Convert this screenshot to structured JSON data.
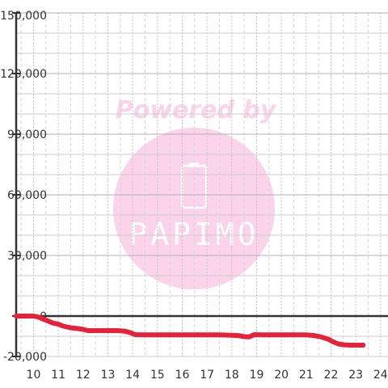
{
  "chart_data": {
    "type": "line",
    "title": "",
    "xlabel": "",
    "ylabel": "",
    "xlim": [
      9.3,
      24.3
    ],
    "ylim": [
      -20000,
      150000
    ],
    "x_ticks": [
      10,
      11,
      12,
      13,
      14,
      15,
      16,
      17,
      18,
      19,
      20,
      21,
      22,
      23,
      24
    ],
    "x_tick_labels": [
      "10",
      "11",
      "12",
      "13",
      "14",
      "15",
      "16",
      "17",
      "18",
      "19",
      "20",
      "21",
      "22",
      "23",
      "24"
    ],
    "y_ticks": [
      150000,
      120000,
      90000,
      60000,
      30000,
      0,
      -20000
    ],
    "y_tick_labels": [
      "150,000",
      "120,000",
      "90,000",
      "60,000",
      "30,000",
      "0",
      "-20,000"
    ],
    "grid": true,
    "series": [
      {
        "x": [
          9.3,
          9.7,
          10.0,
          10.2,
          10.4,
          10.6,
          10.8,
          11.0,
          11.2,
          11.5,
          11.8,
          12.0,
          12.2,
          12.6,
          13.0,
          13.4,
          13.7,
          13.9,
          14.1,
          14.4,
          15.0,
          16.0,
          17.0,
          17.5,
          18.0,
          18.3,
          18.5,
          18.7,
          18.9,
          19.2,
          19.5,
          20.0,
          20.5,
          21.0,
          21.3,
          21.6,
          21.9,
          22.1,
          22.3,
          22.5,
          22.8,
          23.1,
          23.3
        ],
        "y": [
          0,
          0,
          0,
          -500,
          -1500,
          -2500,
          -3500,
          -4000,
          -5000,
          -5800,
          -6200,
          -6600,
          -7200,
          -7200,
          -7200,
          -7200,
          -7500,
          -8200,
          -9200,
          -9300,
          -9300,
          -9300,
          -9300,
          -9300,
          -9500,
          -9700,
          -10200,
          -10300,
          -9200,
          -9300,
          -9300,
          -9300,
          -9300,
          -9300,
          -9600,
          -10300,
          -11500,
          -12800,
          -13800,
          -14200,
          -14400,
          -14400,
          -14400
        ],
        "color": "#e8213a"
      }
    ],
    "watermark": {
      "text": "Powered by",
      "logo_text": "PAPIMO"
    }
  }
}
